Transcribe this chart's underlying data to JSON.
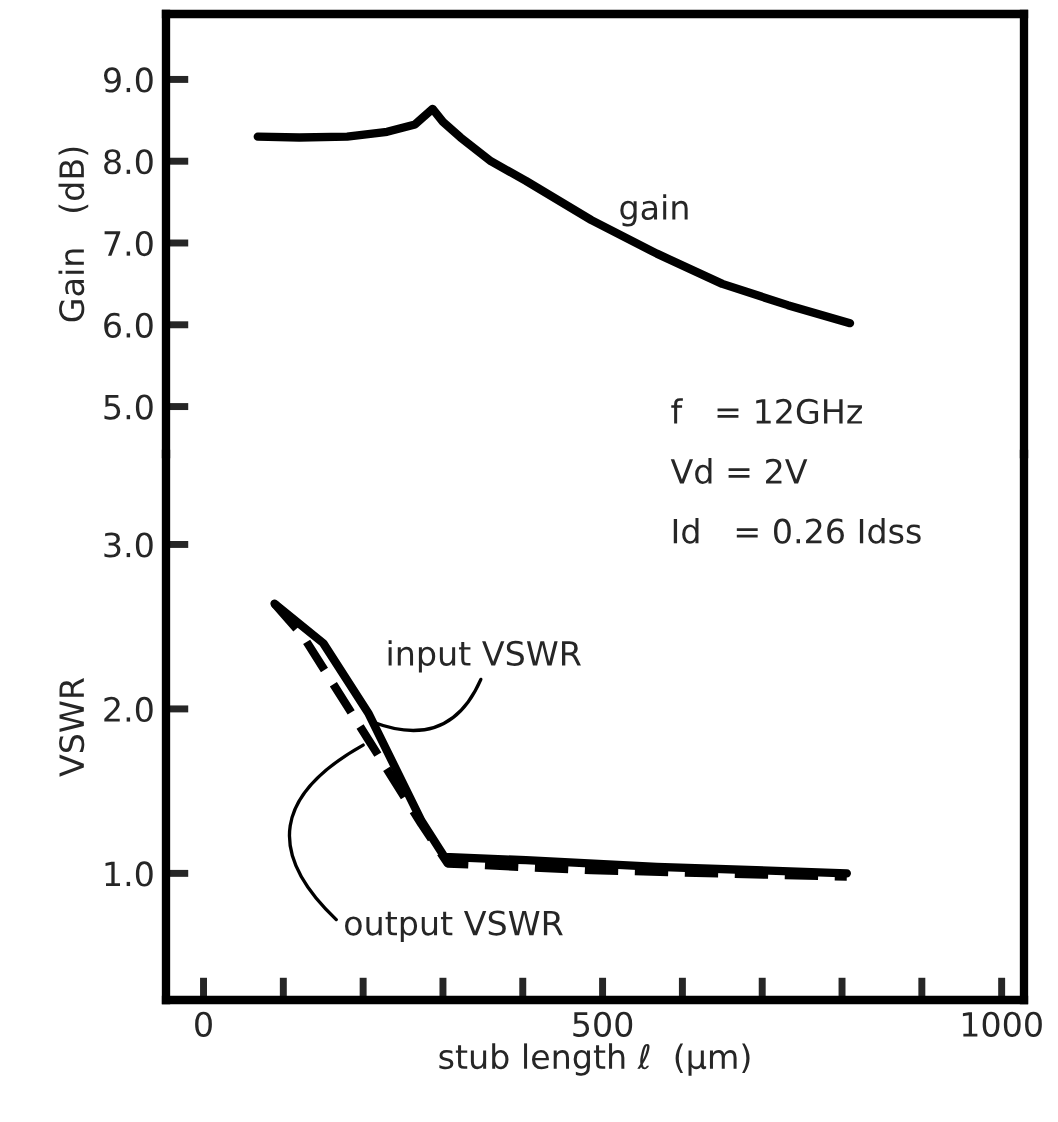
{
  "chart_data": [
    {
      "type": "line",
      "xlim": [
        -47,
        1028
      ],
      "ylim": [
        4.42,
        9.8
      ],
      "ylabel": "Gain   (dB)",
      "tick_labels": "y",
      "yticks": [
        {
          "value": 5,
          "label": "5.0"
        },
        {
          "value": 6,
          "label": "6.0"
        },
        {
          "value": 7,
          "label": "7.0"
        },
        {
          "value": 8,
          "label": "8.0"
        },
        {
          "value": 9,
          "label": "9.0"
        }
      ],
      "series": [
        {
          "name": "gain",
          "color": "#000000",
          "line_style": "solid",
          "x": [
            68,
            120,
            180,
            230,
            265,
            287,
            300,
            322,
            360,
            404,
            486,
            568,
            650,
            732,
            810
          ],
          "values": [
            8.3,
            8.29,
            8.3,
            8.36,
            8.45,
            8.64,
            8.48,
            8.29,
            8.0,
            7.76,
            7.28,
            6.87,
            6.5,
            6.24,
            6.02
          ]
        }
      ],
      "annotations": [
        "f   = 12GHz",
        "Vd = 2V",
        "Id   = 0.26 Idss"
      ]
    },
    {
      "type": "line",
      "xlim": [
        -47,
        1028
      ],
      "ylim": [
        0.23,
        3.55
      ],
      "xlabel": "stub length ℓ  (μm)",
      "ylabel": "VSWR",
      "xticks": [
        0,
        {
          "value": 100,
          "label": null
        },
        {
          "value": 200,
          "label": null
        },
        {
          "value": 300,
          "label": null
        },
        {
          "value": 400,
          "label": null
        },
        500,
        {
          "value": 600,
          "label": null
        },
        {
          "value": 700,
          "label": null
        },
        {
          "value": 800,
          "label": null
        },
        {
          "value": 900,
          "label": null
        },
        1000
      ],
      "yticks": [
        {
          "value": 1,
          "label": "1.0"
        },
        {
          "value": 2,
          "label": "2.0"
        },
        {
          "value": 3,
          "label": "3.0"
        }
      ],
      "series": [
        {
          "name": "input VSWR",
          "color": "#000000",
          "line_style": "solid",
          "x": [
            89,
            150,
            207,
            273,
            302,
            404,
            568,
            806
          ],
          "values": [
            2.64,
            2.4,
            1.97,
            1.32,
            1.1,
            1.08,
            1.04,
            1.0
          ]
        },
        {
          "name": "output VSWR",
          "color": "#000000",
          "line_style": "dashed",
          "x": [
            89,
            125,
            207,
            273,
            306,
            486,
            806
          ],
          "values": [
            2.64,
            2.44,
            1.81,
            1.3,
            1.06,
            1.02,
            0.98
          ]
        }
      ]
    }
  ]
}
